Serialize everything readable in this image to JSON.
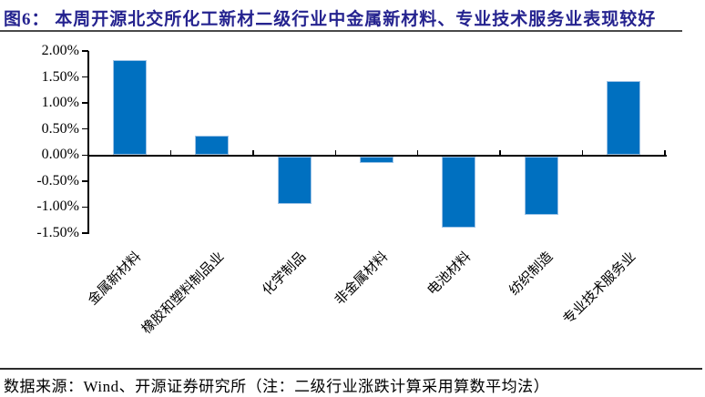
{
  "title": "图6： 本周开源北交所化工新材二级行业中金属新材料、专业技术服务业表现较好",
  "footer": {
    "text": "数据来源：Wind、开源证券研究所（注：二级行业涨跌计算采用算数平均法）"
  },
  "colors": {
    "title_text": "#25238f",
    "bar_fill": "#0070C0",
    "bar_border": "#9DC3E6",
    "axis": "#000000",
    "rule": "#4a4a4a"
  },
  "chart_data": {
    "type": "bar",
    "title": "",
    "xlabel": "",
    "ylabel": "",
    "unit": "%",
    "grid": false,
    "legend": false,
    "ylim": [
      -1.5,
      2.0
    ],
    "y_tick_labels": [
      "2.00%",
      "1.50%",
      "1.00%",
      "0.50%",
      "0.00%",
      "-0.50%",
      "-1.00%",
      "-1.50%"
    ],
    "categories": [
      "金属新材料",
      "橡胶和塑料制品业",
      "化学制品",
      "非金属材料",
      "电池材料",
      "纺织制造",
      "专业技术服务业"
    ],
    "values": [
      1.82,
      0.38,
      -0.92,
      -0.13,
      -1.37,
      -1.13,
      1.42
    ]
  }
}
